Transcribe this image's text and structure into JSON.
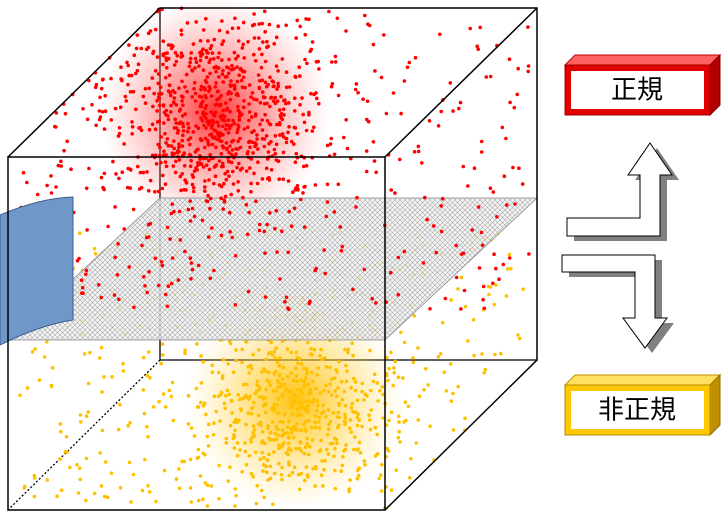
{
  "boxes": [
    {
      "label": "正規"
    },
    {
      "label": "非正規"
    }
  ]
}
